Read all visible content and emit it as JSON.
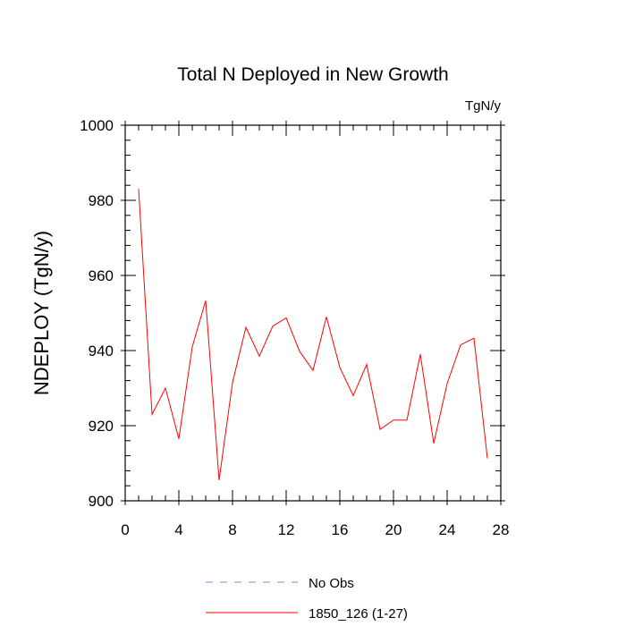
{
  "chart_data": {
    "type": "line",
    "title": "Total N Deployed in New Growth",
    "units_label": "TgN/y",
    "ylabel": "NDEPLOY  (TgN/y)",
    "xlabel": "",
    "xlim": [
      0,
      28
    ],
    "ylim": [
      900,
      1000
    ],
    "x_major_ticks": [
      0,
      4,
      8,
      12,
      16,
      20,
      24,
      28
    ],
    "y_major_ticks": [
      900,
      920,
      940,
      960,
      980,
      1000
    ],
    "grid": false,
    "legend_position": "bottom",
    "series": [
      {
        "name": "1850_126 (1-27)",
        "color": "#ff0000",
        "style": "solid",
        "x": [
          1,
          2,
          3,
          4,
          5,
          6,
          7,
          8,
          9,
          10,
          11,
          12,
          13,
          14,
          15,
          16,
          17,
          18,
          19,
          20,
          21,
          22,
          23,
          24,
          25,
          26,
          27
        ],
        "y": [
          983,
          923,
          930,
          916.5,
          941,
          953.3,
          905.5,
          931.5,
          946.2,
          938.5,
          946.5,
          948.7,
          939.8,
          934.7,
          949,
          935.5,
          928,
          936.3,
          919,
          921.5,
          921.5,
          939,
          915.3,
          931.2,
          941.5,
          943.3,
          911.3
        ]
      }
    ],
    "legend": [
      {
        "label": "No Obs",
        "color": "#7f7fff",
        "style": "dashed"
      },
      {
        "label": "1850_126 (1-27)",
        "color": "#ff0000",
        "style": "solid"
      }
    ]
  }
}
